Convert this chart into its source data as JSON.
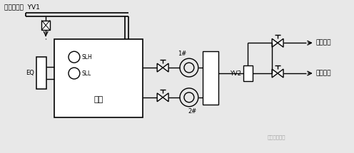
{
  "bg_color": "#e8e8e8",
  "line_color": "#000000",
  "title_text": "市网自来水  YV1",
  "label_EQ": "EQ",
  "label_SLH": "SLH",
  "label_SLL": "SLL",
  "label_tank": "水池",
  "label_YV2": "YV2",
  "label_pump1": "1#",
  "label_pump2": "2#",
  "label_fire": "消防用水",
  "label_life": "生活用水",
  "label_watermark": "机械设计联盟",
  "figsize": [
    4.96,
    2.15
  ],
  "dpi": 100
}
